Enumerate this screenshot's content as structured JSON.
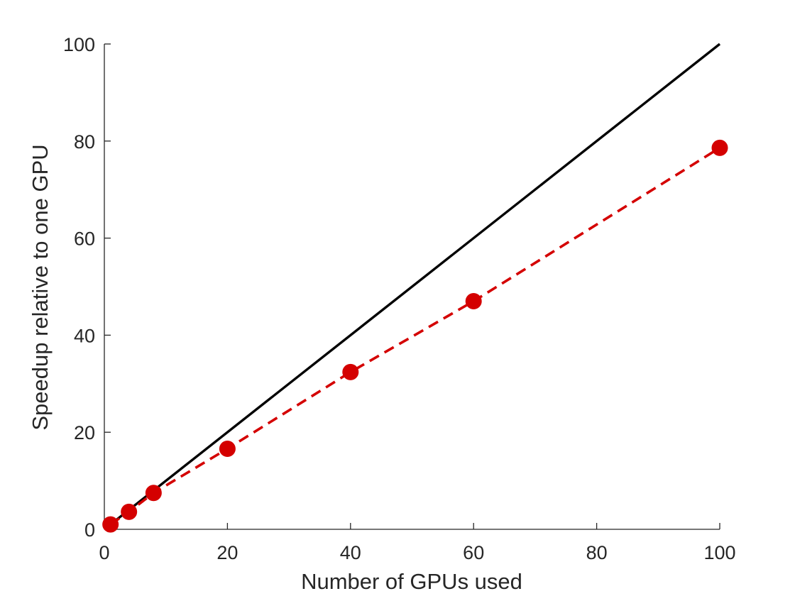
{
  "chart_data": {
    "type": "line",
    "title": "",
    "xlabel": "Number of GPUs used",
    "ylabel": "Speedup relative to one GPU",
    "xlim": [
      0,
      100
    ],
    "ylim": [
      0,
      100
    ],
    "x_ticks": [
      0,
      20,
      40,
      60,
      80,
      100
    ],
    "y_ticks": [
      0,
      20,
      40,
      60,
      80,
      100
    ],
    "x_tick_labels": [
      "0",
      "20",
      "40",
      "60",
      "80",
      "100"
    ],
    "y_tick_labels": [
      "0",
      "20",
      "40",
      "60",
      "80",
      "100"
    ],
    "grid": false,
    "legend": "none",
    "series": [
      {
        "style": "solid",
        "marker": "none",
        "color": "#000000",
        "x": [
          1,
          100
        ],
        "y": [
          1,
          100
        ]
      },
      {
        "style": "dashed",
        "marker": "circle",
        "color": "#d40000",
        "x": [
          1,
          4,
          8,
          20,
          40,
          60,
          100
        ],
        "y": [
          1.0,
          3.6,
          7.5,
          16.6,
          32.4,
          47.0,
          78.6
        ]
      }
    ]
  }
}
